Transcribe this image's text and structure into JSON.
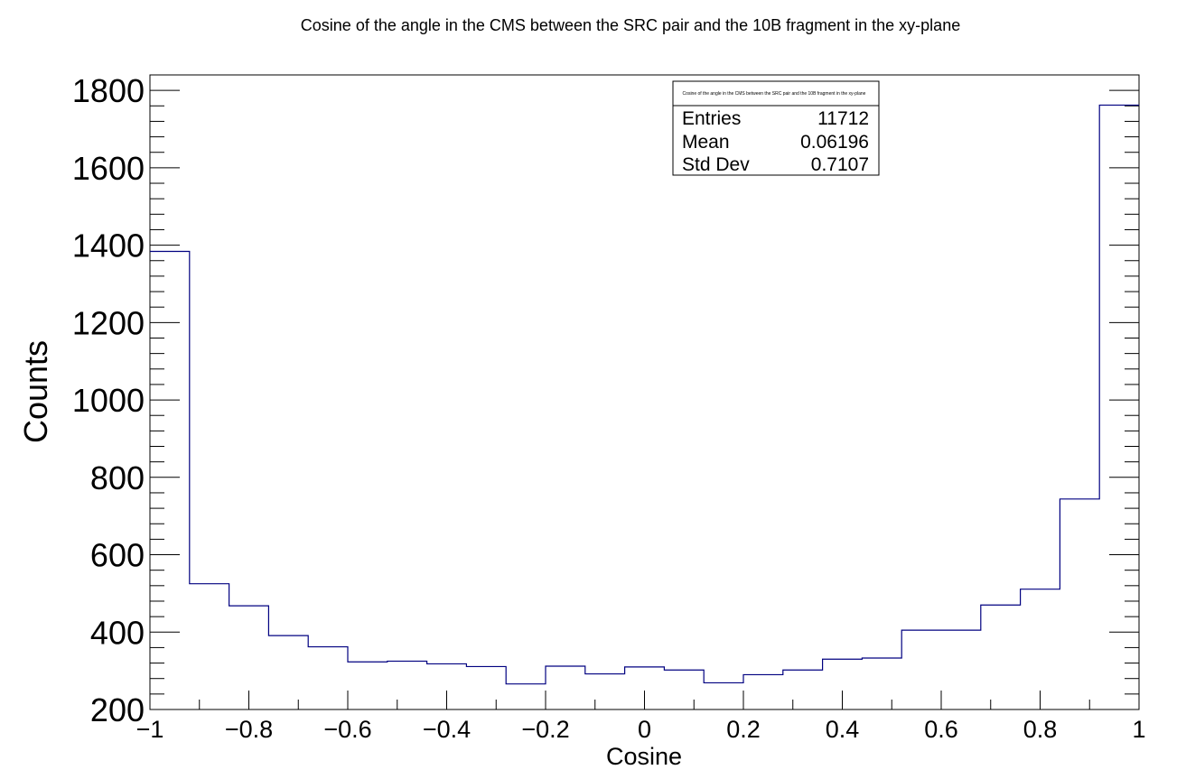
{
  "chart_data": {
    "type": "histogram",
    "title": "Cosine of the angle in the CMS between the SRC pair and the 10B fragment  in the xy-plane",
    "xlabel": "Cosine",
    "ylabel": "Counts",
    "xlim": [
      -1,
      1
    ],
    "ylim": [
      200,
      1840
    ],
    "x_ticks": [
      -1,
      -0.8,
      -0.6,
      -0.4,
      -0.2,
      0,
      0.2,
      0.4,
      0.6,
      0.8,
      1
    ],
    "x_tick_labels": [
      "−1",
      "−0.8",
      "−0.6",
      "−0.4",
      "−0.2",
      "0",
      "0.2",
      "0.4",
      "0.6",
      "0.8",
      "1"
    ],
    "y_ticks": [
      200,
      400,
      600,
      800,
      1000,
      1200,
      1400,
      1600,
      1800
    ],
    "y_tick_labels": [
      "200",
      "400",
      "600",
      "800",
      "1000",
      "1200",
      "1400",
      "1600",
      "1800"
    ],
    "bin_edges": [
      -1,
      -0.92,
      -0.84,
      -0.76,
      -0.68,
      -0.6,
      -0.52,
      -0.44,
      -0.36,
      -0.28,
      -0.2,
      -0.12,
      -0.04,
      0.04,
      0.12,
      0.2,
      0.28,
      0.36,
      0.44,
      0.52,
      0.6,
      0.68,
      0.76,
      0.84,
      0.92,
      1
    ],
    "series": [
      {
        "color": "#000080",
        "values": [
          1384,
          525,
          468,
          391,
          362,
          323,
          325,
          318,
          311,
          266,
          312,
          292,
          310,
          302,
          269,
          290,
          302,
          330,
          333,
          405,
          405,
          470,
          511,
          744,
          1762
        ]
      }
    ],
    "stats_box": {
      "title": "Cosine of the angle in the CMS between the SRC pair and the 10B fragment  in the xy-plane",
      "rows": [
        {
          "label": "Entries",
          "value": "11712"
        },
        {
          "label": "Mean",
          "value": "0.06196"
        },
        {
          "label": "Std Dev",
          "value": "0.7107"
        }
      ]
    }
  }
}
